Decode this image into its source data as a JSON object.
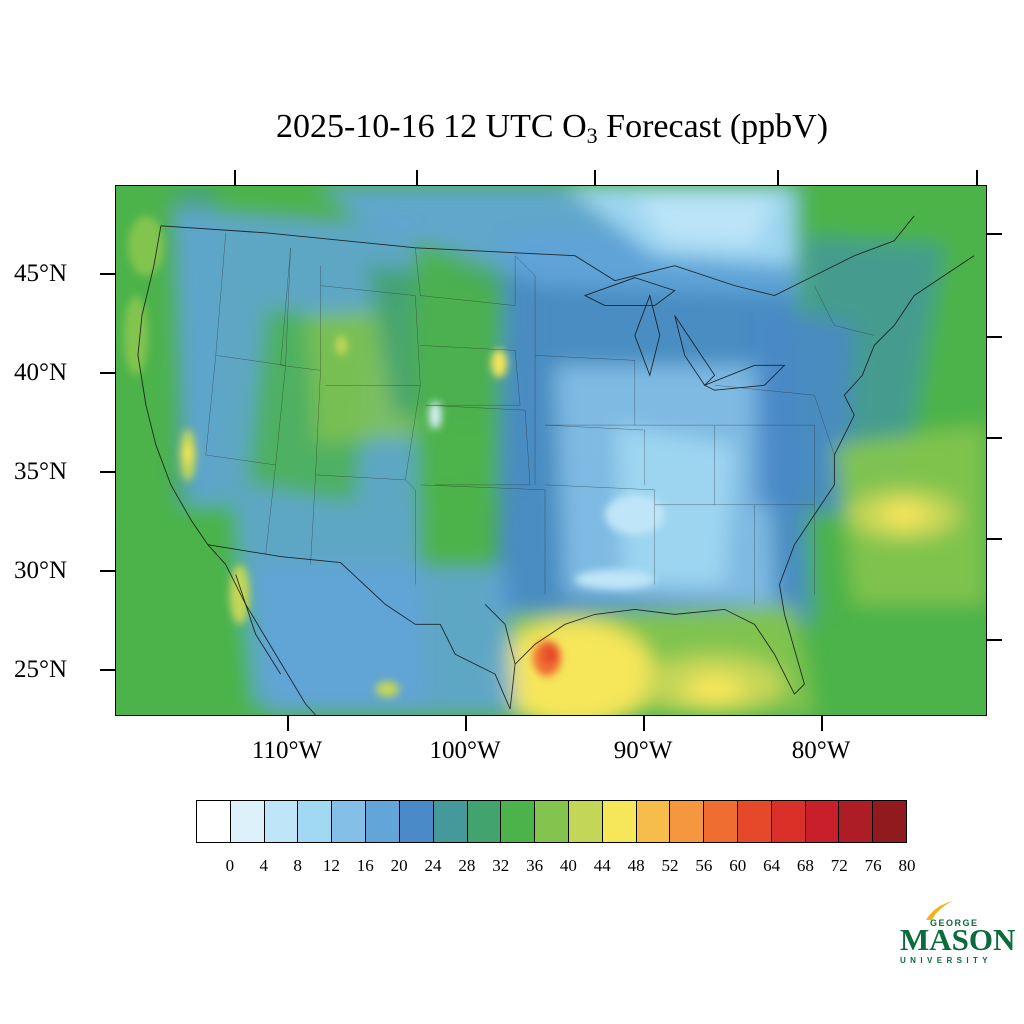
{
  "title": {
    "prefix": "2025-10-16 12 UTC O",
    "subscript": "3",
    "suffix": " Forecast (ppbV)"
  },
  "map": {
    "latitude_labels": [
      "45°N",
      "40°N",
      "35°N",
      "30°N",
      "25°N"
    ],
    "longitude_labels": [
      "110°W",
      "100°W",
      "90°W",
      "80°W"
    ],
    "field": "O3 surface concentration (ppbV)"
  },
  "colorbar": {
    "labels": [
      "0",
      "4",
      "8",
      "12",
      "16",
      "20",
      "24",
      "28",
      "32",
      "36",
      "40",
      "44",
      "48",
      "52",
      "56",
      "60",
      "64",
      "68",
      "72",
      "76",
      "80"
    ],
    "colors": [
      "#ffffff",
      "#ddf1fb",
      "#bfe6f8",
      "#a1d8f2",
      "#83bfe6",
      "#62a5d9",
      "#4a8ac8",
      "#45999a",
      "#42a36e",
      "#4cb34a",
      "#83c44f",
      "#c4d658",
      "#f5e65a",
      "#f6bd4b",
      "#f5973e",
      "#ef6d30",
      "#e6492a",
      "#db2f2a",
      "#c81f2a",
      "#ad1d25",
      "#911a1e"
    ]
  },
  "logo": {
    "line1": "GEORGE",
    "line2": "MASON",
    "line3": "UNIVERSITY",
    "colors": {
      "green": "#0c6b3c",
      "gold": "#f0b41c"
    }
  }
}
